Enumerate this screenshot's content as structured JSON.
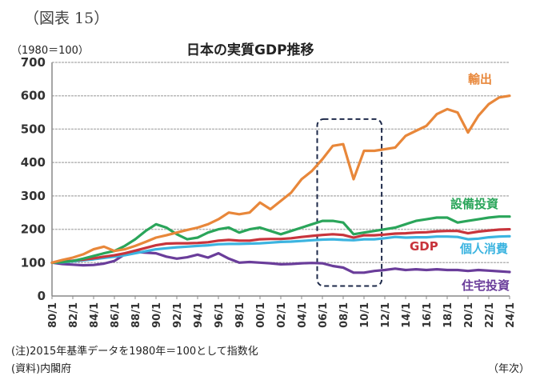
{
  "figure_label": "（図表 15）",
  "unit_label": "（1980＝100）",
  "footer": {
    "note": "(注)2015年基準データを1980年＝100として指数化",
    "source": "(資料)内閣府",
    "x_unit": "（年次）"
  },
  "chart_data": {
    "type": "line",
    "title": "日本の実質GDP推移",
    "xlabel": "（年次）",
    "ylabel": "（1980＝100）",
    "ylim": [
      0,
      700
    ],
    "yticks": [
      0,
      100,
      200,
      300,
      400,
      500,
      600,
      700
    ],
    "grid": true,
    "x_tick_labels": [
      "80/1",
      "82/1",
      "84/1",
      "86/1",
      "88/1",
      "90/1",
      "92/1",
      "94/1",
      "96/1",
      "98/1",
      "00/1",
      "02/1",
      "04/1",
      "06/1",
      "08/1",
      "10/1",
      "12/1",
      "14/1",
      "16/1",
      "18/1",
      "20/1",
      "22/1",
      "24/1"
    ],
    "x": [
      1980,
      1981,
      1982,
      1983,
      1984,
      1985,
      1986,
      1987,
      1988,
      1989,
      1990,
      1991,
      1992,
      1993,
      1994,
      1995,
      1996,
      1997,
      1998,
      1999,
      2000,
      2001,
      2002,
      2003,
      2004,
      2005,
      2006,
      2007,
      2008,
      2009,
      2010,
      2011,
      2012,
      2013,
      2014,
      2015,
      2016,
      2017,
      2018,
      2019,
      2020,
      2021,
      2022,
      2023,
      2024
    ],
    "highlight_box": {
      "x_from": 2005.5,
      "x_to": 2011.7,
      "y_from": 30,
      "y_to": 530,
      "style": "dashed"
    },
    "series": [
      {
        "name": "輸出",
        "color": "#e8873a",
        "values": [
          100,
          108,
          115,
          125,
          140,
          148,
          135,
          140,
          150,
          162,
          175,
          182,
          190,
          198,
          205,
          215,
          230,
          250,
          245,
          250,
          280,
          260,
          285,
          310,
          350,
          375,
          410,
          450,
          455,
          350,
          435,
          435,
          440,
          445,
          480,
          495,
          510,
          545,
          560,
          550,
          490,
          540,
          575,
          595,
          600
        ]
      },
      {
        "name": "設備投資",
        "color": "#2aa55a",
        "values": [
          100,
          102,
          105,
          112,
          120,
          128,
          135,
          150,
          170,
          195,
          215,
          205,
          185,
          170,
          175,
          190,
          200,
          205,
          190,
          200,
          205,
          195,
          185,
          195,
          205,
          215,
          225,
          225,
          220,
          185,
          190,
          195,
          200,
          205,
          215,
          225,
          230,
          235,
          235,
          220,
          225,
          230,
          235,
          238,
          238
        ]
      },
      {
        "name": "GDP",
        "color": "#c8343c",
        "values": [
          100,
          103,
          106,
          109,
          113,
          118,
          122,
          128,
          136,
          144,
          152,
          157,
          158,
          158,
          159,
          161,
          166,
          168,
          166,
          166,
          170,
          171,
          171,
          173,
          177,
          180,
          183,
          185,
          183,
          175,
          182,
          182,
          184,
          187,
          188,
          190,
          191,
          194,
          195,
          195,
          188,
          193,
          196,
          199,
          200
        ]
      },
      {
        "name": "個人消費",
        "color": "#3cb4e0",
        "values": [
          100,
          101,
          104,
          107,
          110,
          114,
          118,
          122,
          128,
          134,
          140,
          143,
          146,
          148,
          150,
          152,
          155,
          156,
          156,
          157,
          158,
          160,
          162,
          163,
          165,
          167,
          169,
          170,
          168,
          167,
          170,
          170,
          173,
          177,
          175,
          176,
          176,
          178,
          178,
          177,
          170,
          172,
          176,
          178,
          179
        ]
      },
      {
        "name": "住宅投資",
        "color": "#6a3d9a",
        "values": [
          100,
          96,
          94,
          92,
          93,
          97,
          105,
          125,
          132,
          130,
          128,
          118,
          112,
          116,
          124,
          115,
          128,
          112,
          100,
          102,
          100,
          98,
          95,
          96,
          98,
          99,
          98,
          90,
          85,
          70,
          70,
          75,
          78,
          82,
          78,
          80,
          78,
          80,
          78,
          78,
          75,
          78,
          76,
          74,
          72
        ]
      }
    ],
    "series_label_positions": {
      "輸出": "top-right",
      "設備投資": "right",
      "GDP": "right",
      "個人消費": "right",
      "住宅投資": "bottom-right"
    }
  }
}
